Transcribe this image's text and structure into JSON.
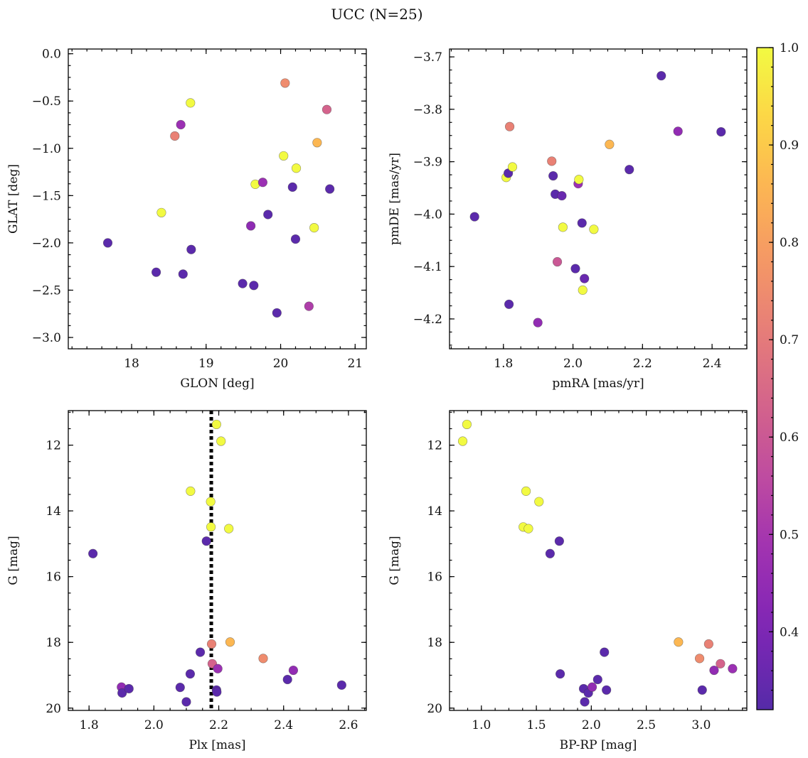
{
  "figure": {
    "title": "UCC (N=25)"
  },
  "colorbar": {
    "colormap": "plasma",
    "range": [
      0.32,
      1.0
    ],
    "ticks": [
      "0.4",
      "0.5",
      "0.6",
      "0.7",
      "0.8",
      "0.9",
      "1.0"
    ]
  },
  "chart_data": [
    {
      "type": "scatter",
      "xlabel": "GLON [deg]",
      "ylabel": "GLAT [deg]",
      "xlim": [
        17.15,
        21.15
      ],
      "ylim": [
        -3.12,
        0.05
      ],
      "y_inverted": false,
      "xticks": [
        "18",
        "19",
        "20",
        "21"
      ],
      "yticks": [
        "0.0",
        "−0.5",
        "−1.0",
        "−1.5",
        "−2.0",
        "−2.5",
        "−3.0"
      ],
      "points": [
        {
          "x": 17.68,
          "y": -2.0,
          "c": 0.33
        },
        {
          "x": 18.33,
          "y": -2.31,
          "c": 0.33
        },
        {
          "x": 18.4,
          "y": -1.68,
          "c": 1.0
        },
        {
          "x": 18.58,
          "y": -0.87,
          "c": 0.72
        },
        {
          "x": 18.66,
          "y": -0.75,
          "c": 0.47
        },
        {
          "x": 18.69,
          "y": -2.33,
          "c": 0.33
        },
        {
          "x": 18.79,
          "y": -0.52,
          "c": 1.0
        },
        {
          "x": 18.8,
          "y": -2.07,
          "c": 0.33
        },
        {
          "x": 19.49,
          "y": -2.43,
          "c": 0.33
        },
        {
          "x": 19.6,
          "y": -1.82,
          "c": 0.44
        },
        {
          "x": 19.64,
          "y": -2.45,
          "c": 0.33
        },
        {
          "x": 19.66,
          "y": -1.38,
          "c": 1.0
        },
        {
          "x": 19.76,
          "y": -1.36,
          "c": 0.47
        },
        {
          "x": 19.83,
          "y": -1.7,
          "c": 0.33
        },
        {
          "x": 19.95,
          "y": -2.74,
          "c": 0.33
        },
        {
          "x": 20.04,
          "y": -1.08,
          "c": 1.0
        },
        {
          "x": 20.06,
          "y": -0.31,
          "c": 0.75
        },
        {
          "x": 20.16,
          "y": -1.41,
          "c": 0.33
        },
        {
          "x": 20.2,
          "y": -1.96,
          "c": 0.33
        },
        {
          "x": 20.21,
          "y": -1.21,
          "c": 1.0
        },
        {
          "x": 20.38,
          "y": -2.67,
          "c": 0.52
        },
        {
          "x": 20.45,
          "y": -1.84,
          "c": 1.0
        },
        {
          "x": 20.49,
          "y": -0.94,
          "c": 0.86
        },
        {
          "x": 20.62,
          "y": -0.59,
          "c": 0.63
        },
        {
          "x": 20.66,
          "y": -1.43,
          "c": 0.33
        }
      ]
    },
    {
      "type": "scatter",
      "xlabel": "pmRA [mas/yr]",
      "ylabel": "pmDE [mas/yr]",
      "xlim": [
        1.645,
        2.5
      ],
      "ylim": [
        -4.257,
        -3.685
      ],
      "y_inverted": false,
      "xticks": [
        "1.8",
        "2.0",
        "2.2",
        "2.4"
      ],
      "yticks": [
        "−3.7",
        "−3.8",
        "−3.9",
        "−4.0",
        "−4.1",
        "−4.2"
      ],
      "points": [
        {
          "x": 1.717,
          "y": -4.005,
          "c": 0.33
        },
        {
          "x": 1.808,
          "y": -3.93,
          "c": 1.0
        },
        {
          "x": 1.814,
          "y": -3.922,
          "c": 0.33
        },
        {
          "x": 1.816,
          "y": -4.172,
          "c": 0.33
        },
        {
          "x": 1.818,
          "y": -3.833,
          "c": 0.72
        },
        {
          "x": 1.826,
          "y": -3.91,
          "c": 1.0
        },
        {
          "x": 1.899,
          "y": -4.207,
          "c": 0.45
        },
        {
          "x": 1.939,
          "y": -3.899,
          "c": 0.72
        },
        {
          "x": 1.943,
          "y": -3.927,
          "c": 0.33
        },
        {
          "x": 1.949,
          "y": -3.962,
          "c": 0.33
        },
        {
          "x": 1.955,
          "y": -4.091,
          "c": 0.6
        },
        {
          "x": 1.968,
          "y": -3.965,
          "c": 0.36
        },
        {
          "x": 1.971,
          "y": -4.025,
          "c": 1.0
        },
        {
          "x": 2.007,
          "y": -4.104,
          "c": 0.33
        },
        {
          "x": 2.015,
          "y": -3.942,
          "c": 0.47
        },
        {
          "x": 2.017,
          "y": -3.934,
          "c": 1.0
        },
        {
          "x": 2.026,
          "y": -4.017,
          "c": 0.33
        },
        {
          "x": 2.028,
          "y": -4.145,
          "c": 1.0
        },
        {
          "x": 2.033,
          "y": -4.123,
          "c": 0.36
        },
        {
          "x": 2.06,
          "y": -4.029,
          "c": 1.0
        },
        {
          "x": 2.105,
          "y": -3.867,
          "c": 0.86
        },
        {
          "x": 2.162,
          "y": -3.915,
          "c": 0.33
        },
        {
          "x": 2.254,
          "y": -3.736,
          "c": 0.33
        },
        {
          "x": 2.302,
          "y": -3.842,
          "c": 0.45
        },
        {
          "x": 2.426,
          "y": -3.843,
          "c": 0.33
        }
      ]
    },
    {
      "type": "scatter",
      "xlabel": "Plx [mas]",
      "ylabel": "G [mag]",
      "xlim": [
        1.736,
        2.655
      ],
      "ylim": [
        10.95,
        20.07
      ],
      "y_inverted": true,
      "xticks": [
        "1.8",
        "2.0",
        "2.2",
        "2.4",
        "2.6"
      ],
      "yticks": [
        "12",
        "14",
        "16",
        "18",
        "20"
      ],
      "vline": {
        "x": 2.177,
        "style": "dotted"
      },
      "points": [
        {
          "x": 1.812,
          "y": 15.3,
          "c": 0.33
        },
        {
          "x": 1.9,
          "y": 19.36,
          "c": 0.45
        },
        {
          "x": 1.902,
          "y": 19.54,
          "c": 0.33
        },
        {
          "x": 1.923,
          "y": 19.41,
          "c": 0.33
        },
        {
          "x": 2.081,
          "y": 19.37,
          "c": 0.33
        },
        {
          "x": 2.1,
          "y": 19.81,
          "c": 0.33
        },
        {
          "x": 2.112,
          "y": 18.96,
          "c": 0.33
        },
        {
          "x": 2.113,
          "y": 13.4,
          "c": 1.0
        },
        {
          "x": 2.143,
          "y": 18.3,
          "c": 0.33
        },
        {
          "x": 2.162,
          "y": 14.92,
          "c": 0.33
        },
        {
          "x": 2.175,
          "y": 13.72,
          "c": 1.0
        },
        {
          "x": 2.176,
          "y": 14.49,
          "c": 1.0
        },
        {
          "x": 2.178,
          "y": 18.05,
          "c": 0.72
        },
        {
          "x": 2.18,
          "y": 18.65,
          "c": 0.63
        },
        {
          "x": 2.193,
          "y": 11.37,
          "c": 1.0
        },
        {
          "x": 2.193,
          "y": 19.45,
          "c": 0.33
        },
        {
          "x": 2.194,
          "y": 19.51,
          "c": 0.33
        },
        {
          "x": 2.197,
          "y": 18.8,
          "c": 0.47
        },
        {
          "x": 2.207,
          "y": 11.88,
          "c": 1.0
        },
        {
          "x": 2.231,
          "y": 14.54,
          "c": 1.0
        },
        {
          "x": 2.235,
          "y": 17.99,
          "c": 0.86
        },
        {
          "x": 2.337,
          "y": 18.49,
          "c": 0.75
        },
        {
          "x": 2.412,
          "y": 19.13,
          "c": 0.33
        },
        {
          "x": 2.43,
          "y": 18.85,
          "c": 0.45
        },
        {
          "x": 2.579,
          "y": 19.3,
          "c": 0.33
        }
      ]
    },
    {
      "type": "scatter",
      "xlabel": "BP-RP [mag]",
      "ylabel": "G [mag]",
      "xlim": [
        0.71,
        3.415
      ],
      "ylim": [
        10.95,
        20.07
      ],
      "y_inverted": true,
      "xticks": [
        "1.0",
        "1.5",
        "2.0",
        "2.5",
        "3.0"
      ],
      "yticks": [
        "12",
        "14",
        "16",
        "18",
        "20"
      ],
      "points": [
        {
          "x": 0.83,
          "y": 11.88,
          "c": 1.0
        },
        {
          "x": 0.868,
          "y": 11.37,
          "c": 1.0
        },
        {
          "x": 1.381,
          "y": 14.49,
          "c": 1.0
        },
        {
          "x": 1.406,
          "y": 13.4,
          "c": 1.0
        },
        {
          "x": 1.428,
          "y": 14.54,
          "c": 1.0
        },
        {
          "x": 1.524,
          "y": 13.72,
          "c": 1.0
        },
        {
          "x": 1.625,
          "y": 15.3,
          "c": 0.33
        },
        {
          "x": 1.709,
          "y": 14.92,
          "c": 0.33
        },
        {
          "x": 1.717,
          "y": 18.96,
          "c": 0.33
        },
        {
          "x": 1.93,
          "y": 19.41,
          "c": 0.33
        },
        {
          "x": 1.94,
          "y": 19.81,
          "c": 0.33
        },
        {
          "x": 1.973,
          "y": 19.54,
          "c": 0.33
        },
        {
          "x": 2.008,
          "y": 19.36,
          "c": 0.45
        },
        {
          "x": 2.058,
          "y": 19.13,
          "c": 0.33
        },
        {
          "x": 2.119,
          "y": 18.3,
          "c": 0.33
        },
        {
          "x": 2.138,
          "y": 19.45,
          "c": 0.33
        },
        {
          "x": 2.793,
          "y": 17.99,
          "c": 0.86
        },
        {
          "x": 2.985,
          "y": 18.49,
          "c": 0.75
        },
        {
          "x": 3.009,
          "y": 19.45,
          "c": 0.33
        },
        {
          "x": 3.068,
          "y": 18.05,
          "c": 0.72
        },
        {
          "x": 3.117,
          "y": 18.85,
          "c": 0.45
        },
        {
          "x": 3.175,
          "y": 18.65,
          "c": 0.63
        },
        {
          "x": 3.285,
          "y": 18.8,
          "c": 0.47
        }
      ]
    }
  ]
}
